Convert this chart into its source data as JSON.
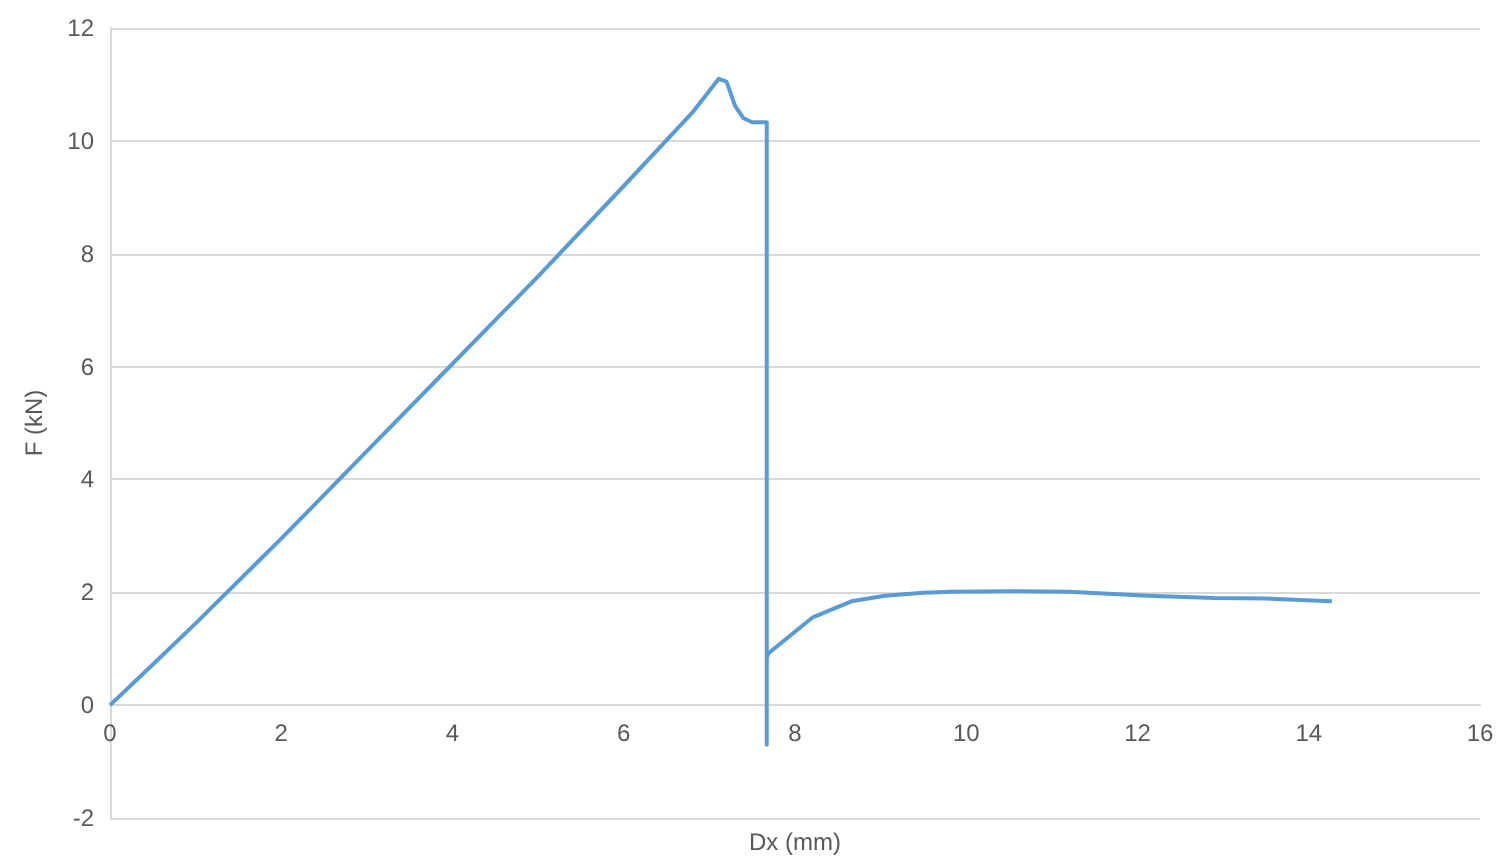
{
  "chart_data": {
    "type": "line",
    "xlabel": "Dx (mm)",
    "ylabel": "F (kN)",
    "x": [
      0,
      0.5,
      1,
      2,
      3,
      4,
      5,
      6,
      6.8,
      7.11,
      7.2,
      7.3,
      7.4,
      7.5,
      7.67,
      7.67,
      7.67,
      7.69,
      8.0,
      8.2,
      8.66,
      9.05,
      9.5,
      9.82,
      10.5,
      11.2,
      12.12,
      12.89,
      13.5,
      14.27
    ],
    "series": [
      {
        "color": "#5b9bd5",
        "values": [
          0,
          0.72,
          1.45,
          2.95,
          4.5,
          6.05,
          7.6,
          9.2,
          10.5,
          11.1,
          11.05,
          10.62,
          10.4,
          10.33,
          10.33,
          -0.7,
          0.85,
          0.92,
          1.3,
          1.55,
          1.84,
          1.94,
          1.99,
          2.01,
          2.02,
          2.01,
          1.94,
          1.9,
          1.89,
          1.84
        ]
      }
    ],
    "xlim": [
      0,
      16
    ],
    "xticks": [
      0,
      2,
      4,
      6,
      8,
      10,
      12,
      14,
      16
    ],
    "ylim": [
      -2,
      12
    ],
    "yticks": [
      -2,
      0,
      2,
      4,
      6,
      8,
      10,
      12
    ],
    "grid": "y",
    "marker": "none",
    "line_style": "solid"
  }
}
